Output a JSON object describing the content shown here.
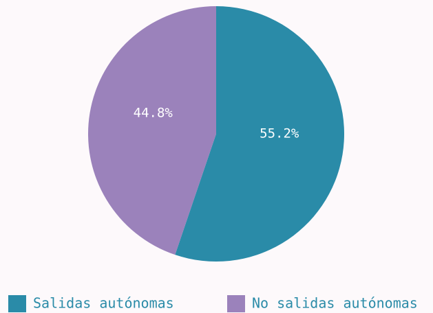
{
  "chart_data": {
    "type": "pie",
    "categories": [
      "Salidas autónomas",
      "No salidas autónomas"
    ],
    "values": [
      55.2,
      44.8
    ],
    "value_labels": [
      "55.2%",
      "44.8%"
    ],
    "colors": [
      "#2a8ba8",
      "#9b82bb"
    ],
    "legend": "bottom"
  }
}
